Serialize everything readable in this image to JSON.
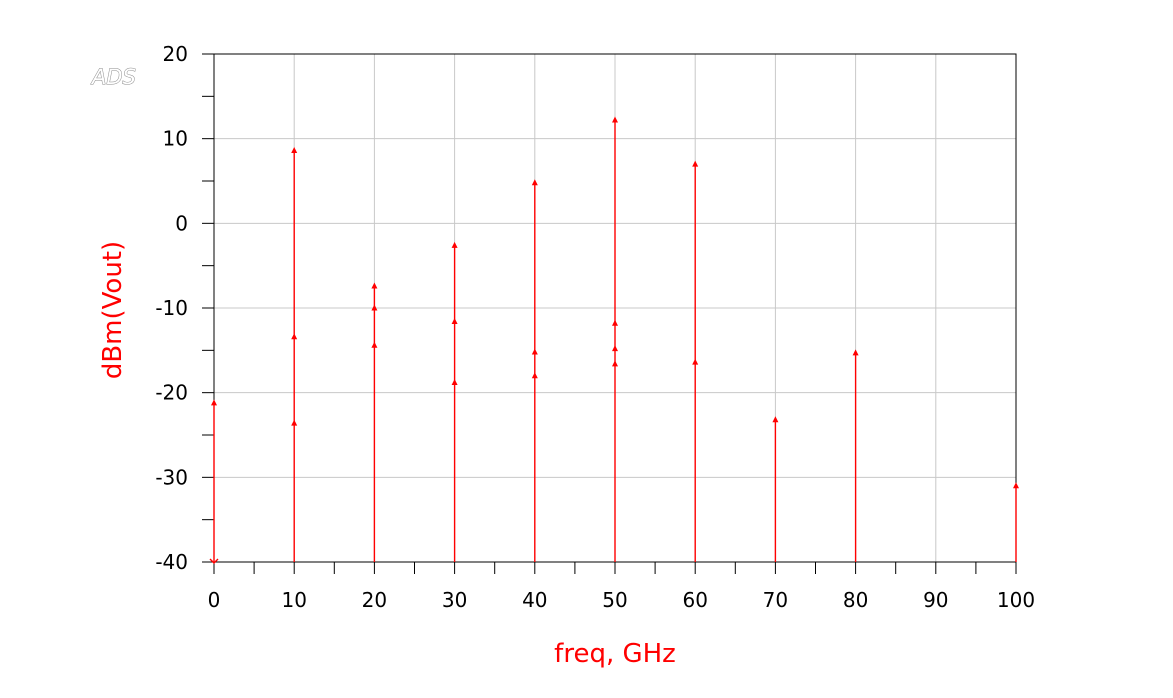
{
  "logo": "ADS",
  "chart_data": {
    "type": "stem",
    "title": "",
    "xlabel": "freq, GHz",
    "ylabel": "dBm(Vout)",
    "xlim": [
      0,
      100
    ],
    "ylim": [
      -40,
      20
    ],
    "x_ticks": [
      0,
      10,
      20,
      30,
      40,
      50,
      60,
      70,
      80,
      90,
      100
    ],
    "y_ticks": [
      -40,
      -30,
      -20,
      -10,
      0,
      10,
      20
    ],
    "grid": true,
    "color": "#ff0000",
    "points": [
      {
        "x": 0,
        "y": -21.2
      },
      {
        "x": 0,
        "y": -40
      },
      {
        "x": 10,
        "y": 8.6
      },
      {
        "x": 10,
        "y": -13.4
      },
      {
        "x": 10,
        "y": -23.6
      },
      {
        "x": 20,
        "y": -7.4
      },
      {
        "x": 20,
        "y": -10.0
      },
      {
        "x": 20,
        "y": -14.4
      },
      {
        "x": 30,
        "y": -2.6
      },
      {
        "x": 30,
        "y": -11.6
      },
      {
        "x": 30,
        "y": -18.8
      },
      {
        "x": 40,
        "y": 4.8
      },
      {
        "x": 40,
        "y": -15.2
      },
      {
        "x": 40,
        "y": -18.0
      },
      {
        "x": 50,
        "y": 12.2
      },
      {
        "x": 50,
        "y": -11.8
      },
      {
        "x": 50,
        "y": -14.8
      },
      {
        "x": 50,
        "y": -16.6
      },
      {
        "x": 60,
        "y": 7.0
      },
      {
        "x": 60,
        "y": -16.4
      },
      {
        "x": 70,
        "y": -23.2
      },
      {
        "x": 80,
        "y": -15.3
      },
      {
        "x": 100,
        "y": -31.0
      }
    ]
  }
}
